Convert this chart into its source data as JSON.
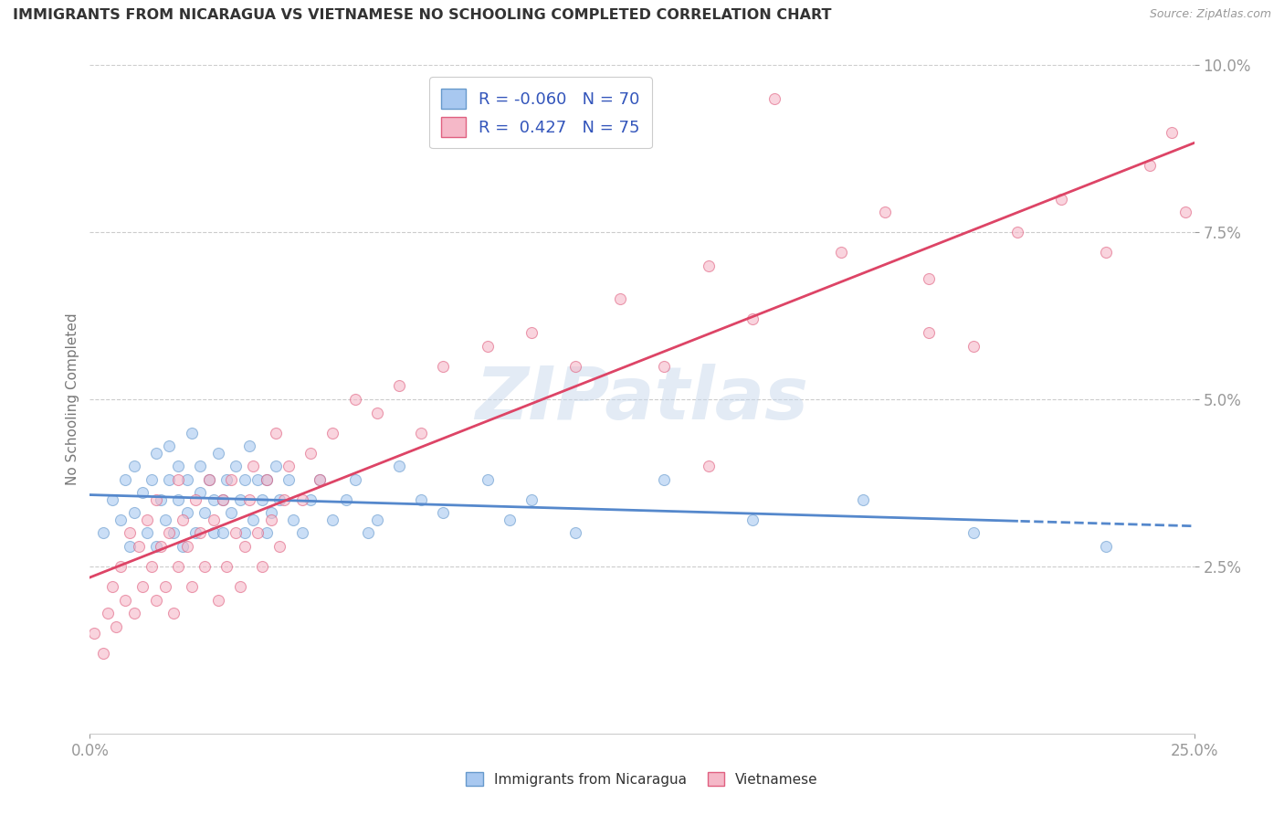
{
  "title": "IMMIGRANTS FROM NICARAGUA VS VIETNAMESE NO SCHOOLING COMPLETED CORRELATION CHART",
  "source": "Source: ZipAtlas.com",
  "ylabel": "No Schooling Completed",
  "xlim": [
    0.0,
    0.25
  ],
  "ylim": [
    0.0,
    0.1
  ],
  "xtick_positions": [
    0.0,
    0.25
  ],
  "ytick_positions": [
    0.025,
    0.05,
    0.075,
    0.1
  ],
  "legend_R1": "-0.060",
  "legend_N1": "70",
  "legend_R2": "0.427",
  "legend_N2": "75",
  "color_nicaragua_fill": "#a8c8f0",
  "color_nicaragua_edge": "#6699cc",
  "color_vietnamese_fill": "#f5b8c8",
  "color_vietnamese_edge": "#e06080",
  "color_line_nicaragua": "#5588cc",
  "color_line_vietnamese": "#dd4466",
  "watermark": "ZIPatlas",
  "background_color": "#ffffff",
  "grid_color": "#cccccc",
  "title_color": "#333333",
  "axis_label_color": "#777777",
  "tick_color": "#999999",
  "dot_alpha": 0.6,
  "dot_size": 75,
  "nicaragua_x": [
    0.003,
    0.005,
    0.007,
    0.008,
    0.009,
    0.01,
    0.01,
    0.012,
    0.013,
    0.014,
    0.015,
    0.015,
    0.016,
    0.017,
    0.018,
    0.018,
    0.019,
    0.02,
    0.02,
    0.021,
    0.022,
    0.022,
    0.023,
    0.024,
    0.025,
    0.025,
    0.026,
    0.027,
    0.028,
    0.028,
    0.029,
    0.03,
    0.03,
    0.031,
    0.032,
    0.033,
    0.034,
    0.035,
    0.035,
    0.036,
    0.037,
    0.038,
    0.039,
    0.04,
    0.04,
    0.041,
    0.042,
    0.043,
    0.045,
    0.046,
    0.048,
    0.05,
    0.052,
    0.055,
    0.058,
    0.06,
    0.063,
    0.065,
    0.07,
    0.075,
    0.08,
    0.09,
    0.095,
    0.1,
    0.11,
    0.13,
    0.15,
    0.175,
    0.2,
    0.23
  ],
  "nicaragua_y": [
    0.03,
    0.035,
    0.032,
    0.038,
    0.028,
    0.033,
    0.04,
    0.036,
    0.03,
    0.038,
    0.028,
    0.042,
    0.035,
    0.032,
    0.038,
    0.043,
    0.03,
    0.035,
    0.04,
    0.028,
    0.033,
    0.038,
    0.045,
    0.03,
    0.036,
    0.04,
    0.033,
    0.038,
    0.03,
    0.035,
    0.042,
    0.035,
    0.03,
    0.038,
    0.033,
    0.04,
    0.035,
    0.03,
    0.038,
    0.043,
    0.032,
    0.038,
    0.035,
    0.03,
    0.038,
    0.033,
    0.04,
    0.035,
    0.038,
    0.032,
    0.03,
    0.035,
    0.038,
    0.032,
    0.035,
    0.038,
    0.03,
    0.032,
    0.04,
    0.035,
    0.033,
    0.038,
    0.032,
    0.035,
    0.03,
    0.038,
    0.032,
    0.035,
    0.03,
    0.028
  ],
  "vietnamese_x": [
    0.001,
    0.003,
    0.004,
    0.005,
    0.006,
    0.007,
    0.008,
    0.009,
    0.01,
    0.011,
    0.012,
    0.013,
    0.014,
    0.015,
    0.015,
    0.016,
    0.017,
    0.018,
    0.019,
    0.02,
    0.02,
    0.021,
    0.022,
    0.023,
    0.024,
    0.025,
    0.026,
    0.027,
    0.028,
    0.029,
    0.03,
    0.031,
    0.032,
    0.033,
    0.034,
    0.035,
    0.036,
    0.037,
    0.038,
    0.039,
    0.04,
    0.041,
    0.042,
    0.043,
    0.044,
    0.045,
    0.048,
    0.05,
    0.052,
    0.055,
    0.06,
    0.065,
    0.07,
    0.075,
    0.08,
    0.09,
    0.1,
    0.11,
    0.12,
    0.13,
    0.14,
    0.15,
    0.17,
    0.18,
    0.19,
    0.2,
    0.21,
    0.22,
    0.23,
    0.24,
    0.245,
    0.248,
    0.14,
    0.19,
    0.155
  ],
  "vietnamese_y": [
    0.015,
    0.012,
    0.018,
    0.022,
    0.016,
    0.025,
    0.02,
    0.03,
    0.018,
    0.028,
    0.022,
    0.032,
    0.025,
    0.02,
    0.035,
    0.028,
    0.022,
    0.03,
    0.018,
    0.025,
    0.038,
    0.032,
    0.028,
    0.022,
    0.035,
    0.03,
    0.025,
    0.038,
    0.032,
    0.02,
    0.035,
    0.025,
    0.038,
    0.03,
    0.022,
    0.028,
    0.035,
    0.04,
    0.03,
    0.025,
    0.038,
    0.032,
    0.045,
    0.028,
    0.035,
    0.04,
    0.035,
    0.042,
    0.038,
    0.045,
    0.05,
    0.048,
    0.052,
    0.045,
    0.055,
    0.058,
    0.06,
    0.055,
    0.065,
    0.055,
    0.07,
    0.062,
    0.072,
    0.078,
    0.068,
    0.058,
    0.075,
    0.08,
    0.072,
    0.085,
    0.09,
    0.078,
    0.04,
    0.06,
    0.095
  ]
}
